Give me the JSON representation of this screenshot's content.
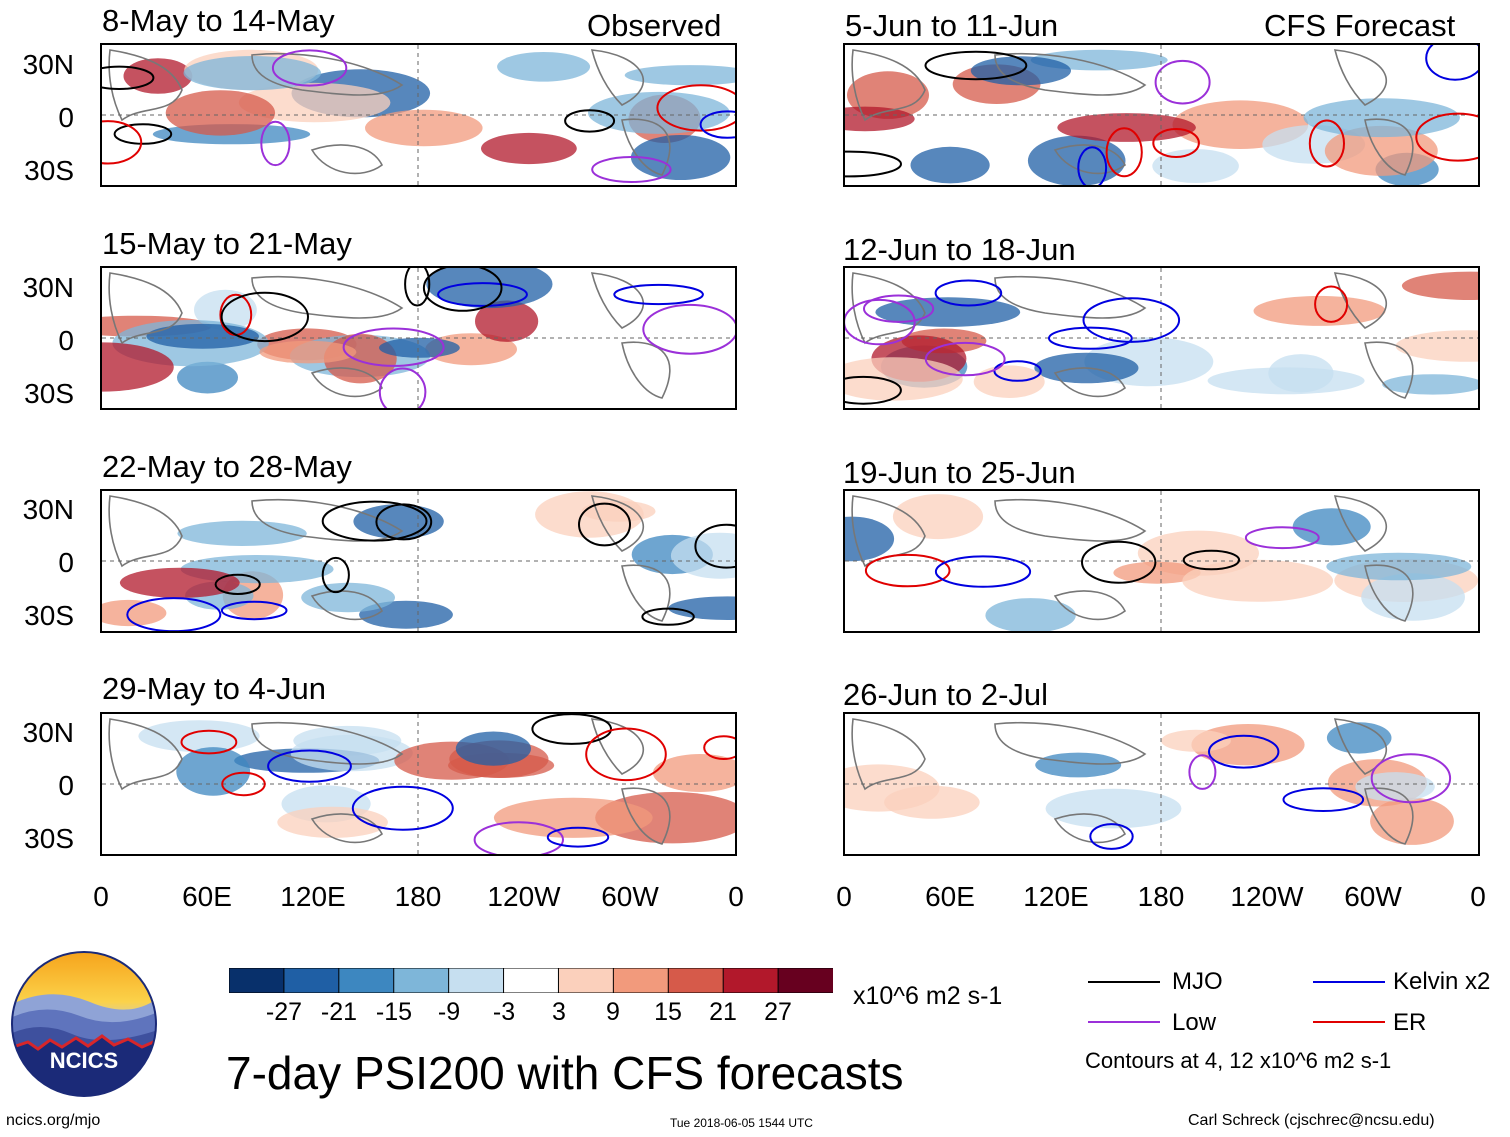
{
  "chart_data": {
    "type": "heatmap",
    "title": "7-day PSI200 with CFS forecasts",
    "units": "x10^6 m2 s-1",
    "colorbar": {
      "ticks": [
        "-27",
        "-21",
        "-15",
        "-9",
        "-3",
        "3",
        "9",
        "15",
        "21",
        "27"
      ],
      "colors": [
        "#08306b",
        "#1f5fa5",
        "#3d87c0",
        "#7eb6d9",
        "#c6dff0",
        "#ffffff",
        "#fbd0bc",
        "#f29a7c",
        "#d65a4a",
        "#b2182b",
        "#67001f"
      ]
    },
    "x_ticks": [
      "0",
      "60E",
      "120E",
      "180",
      "120W",
      "60W",
      "0"
    ],
    "y_ticks": [
      "30N",
      "0",
      "30S"
    ],
    "panels": [
      {
        "label": "8-May to 14-May",
        "group": "Observed",
        "tag": "Observed"
      },
      {
        "label": "15-May to 21-May",
        "group": "Observed",
        "tag": ""
      },
      {
        "label": "22-May to 28-May",
        "group": "Observed",
        "tag": ""
      },
      {
        "label": "29-May to 4-Jun",
        "group": "Observed",
        "tag": ""
      },
      {
        "label": "5-Jun to 11-Jun",
        "group": "CFS Forecast",
        "tag": "CFS Forecast"
      },
      {
        "label": "12-Jun to 18-Jun",
        "group": "CFS Forecast",
        "tag": ""
      },
      {
        "label": "19-Jun to 25-Jun",
        "group": "CFS Forecast",
        "tag": ""
      },
      {
        "label": "26-Jun to 2-Jul",
        "group": "CFS Forecast",
        "tag": ""
      }
    ],
    "legend": [
      {
        "name": "MJO",
        "color": "#000000"
      },
      {
        "name": "Kelvin x2",
        "color": "#0000e0"
      },
      {
        "name": "Low",
        "color": "#9b30d9"
      },
      {
        "name": "ER",
        "color": "#e00000"
      }
    ],
    "contour_note": "Contours at 4, 12 x10^6 m2 s-1"
  },
  "logo": {
    "text": "NCICS"
  },
  "footer": {
    "url": "ncics.org/mjo",
    "timestamp": "Tue 2018-06-05 1544 UTC",
    "author": "Carl Schreck (cjschrec@ncsu.edu)"
  }
}
